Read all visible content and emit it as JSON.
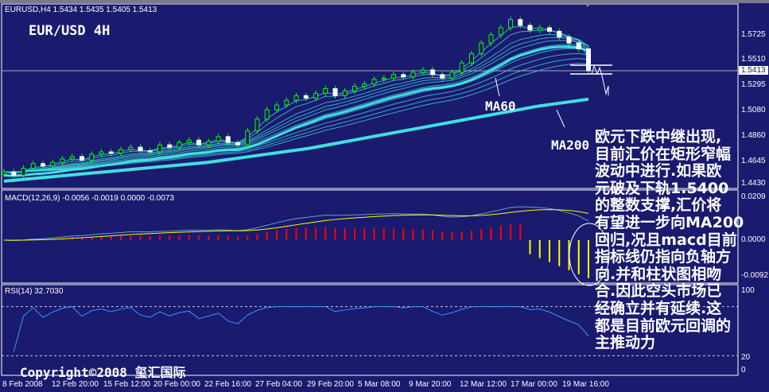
{
  "header": {
    "symbol_info": "EURUSD,H4  1.5434 1.5435 1.5405 1.5413",
    "title": "EUR/USD 4H"
  },
  "colors": {
    "background": "#1a1a6e",
    "bull": "#00ff00",
    "ma": "#40e0e0",
    "macd_pos": "#ff0000",
    "macd_neg": "#ffff00",
    "signal": "#ffff00",
    "rsi": "#3399ff"
  },
  "price_axis": [
    "1.5725",
    "1.5510",
    "1.5295",
    "1.5080",
    "1.4860",
    "1.4645",
    "1.4430"
  ],
  "current_price": "1.5413",
  "macd": {
    "label": "MACD(12,26,9) -0.0056 -0.0019 0.0000 -0.0073",
    "axis": [
      "0.0209",
      "0.0000",
      "-0.0092"
    ]
  },
  "rsi": {
    "label": "RSI(14) 32.7030",
    "axis": [
      "100",
      "20",
      "0"
    ],
    "levels": [
      20,
      80
    ]
  },
  "time_axis": [
    "8 Feb 2008",
    "12 Feb 20:00",
    "15 Feb 12:00",
    "20 Feb 00:00",
    "22 Feb 16:00",
    "27 Feb 04:00",
    "29 Feb 20:00",
    "5 Mar 08:00",
    "9 Mar 20:00",
    "12 Mar 12:00",
    "17 Mar 00:00",
    "19 Mar 16:00"
  ],
  "annotations": {
    "ma60": "MA60",
    "ma200": "MA200"
  },
  "note_lines": [
    "欧元下跌中继出现,",
    "目前汇价在矩形窄幅",
    "波动中进行.如果欧",
    "元破及下轨1.5400",
    "的整数支撑,汇价将",
    "有望进一步向MA200",
    "回归,况且macd目前",
    "指标线仍指向负轴方",
    "向.并和柱状图相吻",
    "合.因此空头市场已",
    "经确立并有延续.这",
    "都是目前欧元回调的",
    "主推动力"
  ],
  "copyright": "Copyright©2008 玺汇国际",
  "chart_data": {
    "type": "candlestick",
    "closes": [
      1.455,
      1.452,
      1.458,
      1.462,
      1.46,
      1.463,
      1.466,
      1.468,
      1.465,
      1.47,
      1.472,
      1.471,
      1.474,
      1.476,
      1.473,
      1.472,
      1.478,
      1.476,
      1.48,
      1.482,
      1.478,
      1.481,
      1.485,
      1.48,
      1.478,
      1.49,
      1.5,
      1.508,
      1.512,
      1.516,
      1.52,
      1.518,
      1.522,
      1.526,
      1.52,
      1.524,
      1.528,
      1.53,
      1.534,
      1.535,
      1.538,
      1.536,
      1.54,
      1.542,
      1.538,
      1.535,
      1.54,
      1.548,
      1.556,
      1.565,
      1.572,
      1.578,
      1.585,
      1.58,
      1.576,
      1.578,
      1.575,
      1.57,
      1.565,
      1.56,
      1.5413
    ],
    "ma200": [
      1.447,
      1.449,
      1.451,
      1.453,
      1.455,
      1.457,
      1.459,
      1.461,
      1.463,
      1.466,
      1.469,
      1.472,
      1.475,
      1.479,
      1.483,
      1.487,
      1.491,
      1.495,
      1.499,
      1.503,
      1.507,
      1.511,
      1.514,
      1.517
    ],
    "ylim": [
      1.4408,
      1.5983
    ]
  }
}
